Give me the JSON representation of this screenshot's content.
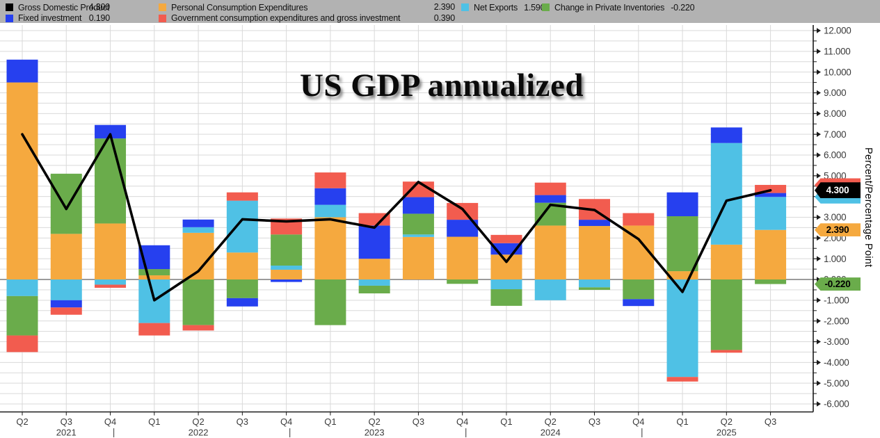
{
  "title": "US GDP annualized",
  "legend": {
    "rows": [
      [
        {
          "key": "gdp",
          "label": "Gross Domestic Product",
          "value": "4.300",
          "color": "#000000"
        },
        {
          "key": "pce",
          "label": "Personal Consumption Expenditures",
          "value": "2.390",
          "color": "#F5A93F"
        },
        {
          "key": "net_exports",
          "label": "Net Exports",
          "value": "1.590",
          "color": "#4FC1E5"
        },
        {
          "key": "inventories",
          "label": "Change in Private Inventories",
          "value": "-0.220",
          "color": "#6AAC4B"
        }
      ],
      [
        {
          "key": "fixed_investment",
          "label": "Fixed investment",
          "value": "0.190",
          "color": "#2640EF"
        },
        {
          "key": "government",
          "label": "Government consumption expenditures and gross investment",
          "value": "0.390",
          "color": "#F25C4F"
        }
      ]
    ]
  },
  "y_axis": {
    "title": "Percent/Percentage Point",
    "min": -6,
    "max": 12,
    "major_step": 1,
    "minor_step": 0.5,
    "decimals": 3
  },
  "x_axis": {
    "quarter_labels": [
      "Q2",
      "Q3",
      "Q4",
      "Q1",
      "Q2",
      "Q3",
      "Q4",
      "Q1",
      "Q2",
      "Q3",
      "Q4",
      "Q1",
      "Q2",
      "Q3",
      "Q4",
      "Q1",
      "Q2",
      "Q3"
    ],
    "years": [
      {
        "text": "2021",
        "index": 1
      },
      {
        "text": "2022",
        "index": 4
      },
      {
        "text": "2023",
        "index": 8
      },
      {
        "text": "2024",
        "index": 12
      },
      {
        "text": "2025",
        "index": 16
      }
    ],
    "year_separator_indices": [
      2,
      6,
      10,
      14
    ]
  },
  "axis_badges": [
    {
      "key": "government",
      "text": "",
      "color": "#F25C4F",
      "text_color": "#000000",
      "value": 4.56
    },
    {
      "key": "net_exports",
      "text": "",
      "color": "#4FC1E5",
      "text_color": "#000000",
      "value": 3.98
    },
    {
      "key": "gdp",
      "text": "4.300",
      "color": "#000000",
      "text_color": "#FFFFFF",
      "value": 4.3
    },
    {
      "key": "pce",
      "text": "2.390",
      "color": "#F5A93F",
      "text_color": "#000000",
      "value": 2.39
    },
    {
      "key": "inventories",
      "text": "-0.220",
      "color": "#6AAC4B",
      "text_color": "#000000",
      "value": -0.22
    }
  ],
  "colors": {
    "legend_bg": "#B2B2B2",
    "plot_bg": "#FFFFFF",
    "grid": "#D9D9D9",
    "zero_line": "#7A7A7A",
    "axis_line": "#1A1A1A",
    "tick_text": "#3B3B3B",
    "line_series": "#000000"
  },
  "chart_data": {
    "type": "bar",
    "subtype": "stacked-contribution-bars-with-line",
    "title": "US GDP annualized",
    "ylabel": "Percent/Percentage Point",
    "ylim": [
      -6,
      12
    ],
    "grid": true,
    "legend_position": "top",
    "categories": [
      "Q2 2021",
      "Q3 2021",
      "Q4 2021",
      "Q1 2022",
      "Q2 2022",
      "Q3 2022",
      "Q4 2022",
      "Q1 2023",
      "Q2 2023",
      "Q3 2023",
      "Q4 2023",
      "Q1 2024",
      "Q2 2024",
      "Q3 2024",
      "Q4 2024",
      "Q1 2025",
      "Q2 2025",
      "Q3 2025"
    ],
    "series": [
      {
        "name": "Personal Consumption Expenditures",
        "color": "#F5A93F",
        "values": [
          9.5,
          2.2,
          2.7,
          0.2,
          2.25,
          1.3,
          0.47,
          3.0,
          1.0,
          2.05,
          2.06,
          1.2,
          2.6,
          2.58,
          2.6,
          0.4,
          1.68,
          2.39
        ]
      },
      {
        "name": "Net Exports",
        "color": "#4FC1E5",
        "values": [
          -0.8,
          -1.0,
          -0.25,
          -2.1,
          0.27,
          2.5,
          0.2,
          0.6,
          -0.3,
          0.12,
          0.0,
          -0.47,
          -1.0,
          -0.38,
          0.0,
          -4.7,
          4.9,
          1.59
        ]
      },
      {
        "name": "Change in Private Inventories",
        "color": "#6AAC4B",
        "values": [
          -1.9,
          2.9,
          4.1,
          0.3,
          -2.2,
          -0.9,
          1.5,
          -2.2,
          -0.37,
          1.0,
          -0.21,
          -0.8,
          1.1,
          -0.12,
          -0.95,
          2.65,
          -3.4,
          -0.22
        ]
      },
      {
        "name": "Fixed investment",
        "color": "#2640EF",
        "values": [
          1.1,
          -0.35,
          0.65,
          1.15,
          0.37,
          -0.4,
          -0.12,
          0.8,
          1.6,
          0.8,
          0.82,
          0.55,
          0.37,
          0.3,
          -0.33,
          1.15,
          0.75,
          0.19
        ]
      },
      {
        "name": "Government consumption expenditures and gross investment",
        "color": "#F25C4F",
        "values": [
          -0.8,
          -0.35,
          -0.15,
          -0.6,
          -0.26,
          0.4,
          0.77,
          0.76,
          0.6,
          0.75,
          0.81,
          0.4,
          0.6,
          1.0,
          0.6,
          -0.22,
          -0.13,
          0.39
        ]
      }
    ],
    "line_series": {
      "name": "Gross Domestic Product",
      "color": "#000000",
      "values": [
        7.0,
        3.4,
        7.0,
        -1.0,
        0.4,
        2.9,
        2.8,
        2.9,
        2.5,
        4.7,
        3.4,
        0.85,
        3.6,
        3.35,
        1.95,
        -0.6,
        3.8,
        4.3
      ]
    }
  }
}
